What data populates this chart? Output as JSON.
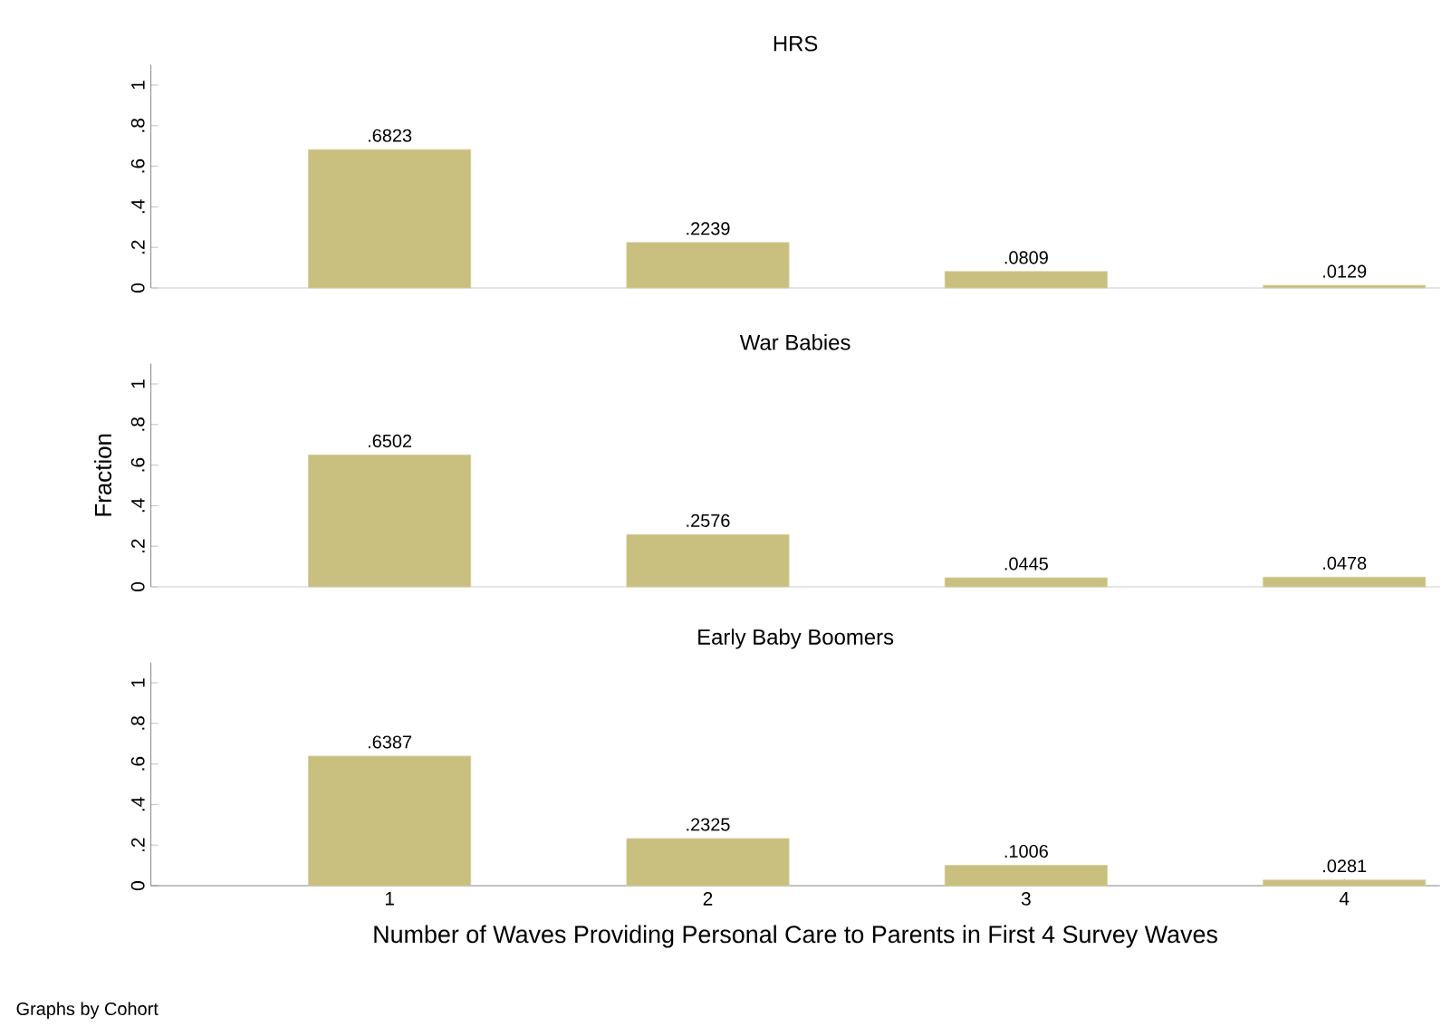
{
  "chart_data": [
    {
      "type": "bar",
      "title": "HRS",
      "x": [
        1,
        2,
        3,
        4
      ],
      "values": [
        0.6823,
        0.2239,
        0.0809,
        0.0129
      ],
      "value_labels": [
        ".6823",
        ".2239",
        ".0809",
        ".0129"
      ],
      "color": "#c9bf7e",
      "xlim": [
        0.25,
        4.3
      ],
      "ylim": [
        0,
        1.1
      ],
      "yticks": [
        0,
        {
          "value": 0.2,
          "label": ".2"
        },
        {
          "value": 0.4,
          "label": ".4"
        },
        {
          "value": 0.6,
          "label": ".6"
        },
        {
          "value": 0.8,
          "label": ".8"
        },
        1
      ],
      "tick_labels": "y"
    },
    {
      "type": "bar",
      "title": "War Babies",
      "ylabel": "Fraction",
      "x": [
        1,
        2,
        3,
        4
      ],
      "values": [
        0.6502,
        0.2576,
        0.0445,
        0.0478
      ],
      "value_labels": [
        ".6502",
        ".2576",
        ".0445",
        ".0478"
      ],
      "color": "#c9bf7e",
      "xlim": [
        0.25,
        4.3
      ],
      "ylim": [
        0,
        1.1
      ],
      "yticks": [
        0,
        {
          "value": 0.2,
          "label": ".2"
        },
        {
          "value": 0.4,
          "label": ".4"
        },
        {
          "value": 0.6,
          "label": ".6"
        },
        {
          "value": 0.8,
          "label": ".8"
        },
        1
      ],
      "tick_labels": "y"
    },
    {
      "type": "bar",
      "title": "Early Baby Boomers",
      "xlabel": "Number of Waves Providing Personal Care to Parents in First 4 Survey Waves",
      "annotations": [
        "Graphs by Cohort"
      ],
      "x": [
        1,
        2,
        3,
        4
      ],
      "values": [
        0.6387,
        0.2325,
        0.1006,
        0.0281
      ],
      "value_labels": [
        ".6387",
        ".2325",
        ".1006",
        ".0281"
      ],
      "color": "#c9bf7e",
      "xlim": [
        0.25,
        4.3
      ],
      "ylim": [
        0,
        1.1
      ],
      "xticks": [
        1,
        2,
        3,
        4
      ],
      "yticks": [
        0,
        {
          "value": 0.2,
          "label": ".2"
        },
        {
          "value": 0.4,
          "label": ".4"
        },
        {
          "value": 0.6,
          "label": ".6"
        },
        {
          "value": 0.8,
          "label": ".8"
        },
        1
      ]
    }
  ]
}
